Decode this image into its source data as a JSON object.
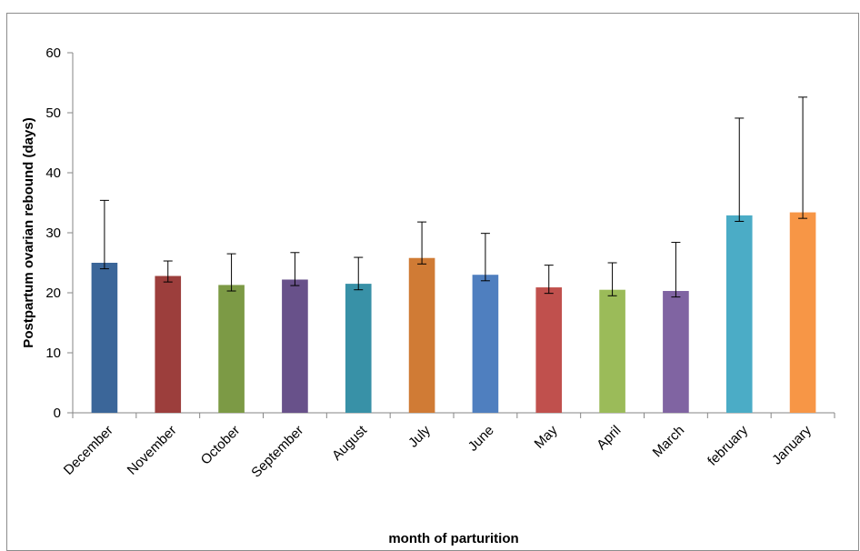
{
  "chart_data": {
    "type": "bar",
    "title": "",
    "xlabel": "month of parturition",
    "ylabel": "Postpartum ovarian rebound (days)",
    "ylim": [
      0,
      60
    ],
    "yticks": [
      0,
      10,
      20,
      30,
      40,
      50,
      60
    ],
    "grid": false,
    "legend": "none",
    "categories": [
      "December",
      "November",
      "October",
      "September",
      "August",
      "July",
      "June",
      "May",
      "April",
      "March",
      "february",
      "January"
    ],
    "values": [
      25,
      22.8,
      21.3,
      22.2,
      21.5,
      25.8,
      23,
      20.9,
      20.5,
      20.3,
      32.9,
      33.4
    ],
    "error_upper": [
      35.4,
      25.3,
      26.5,
      26.7,
      25.9,
      31.8,
      29.9,
      24.6,
      25,
      28.4,
      49.1,
      52.6
    ],
    "error_lower": [
      24,
      21.8,
      20.3,
      21.2,
      20.5,
      24.8,
      22,
      19.9,
      19.5,
      19.3,
      31.9,
      32.4
    ],
    "colors": [
      "#3b6699",
      "#9c3e3c",
      "#7c9a45",
      "#68518a",
      "#3891a7",
      "#d07b35",
      "#4f7fbf",
      "#c0504d",
      "#9bbb59",
      "#8064a2",
      "#4bacc6",
      "#f79646"
    ]
  }
}
